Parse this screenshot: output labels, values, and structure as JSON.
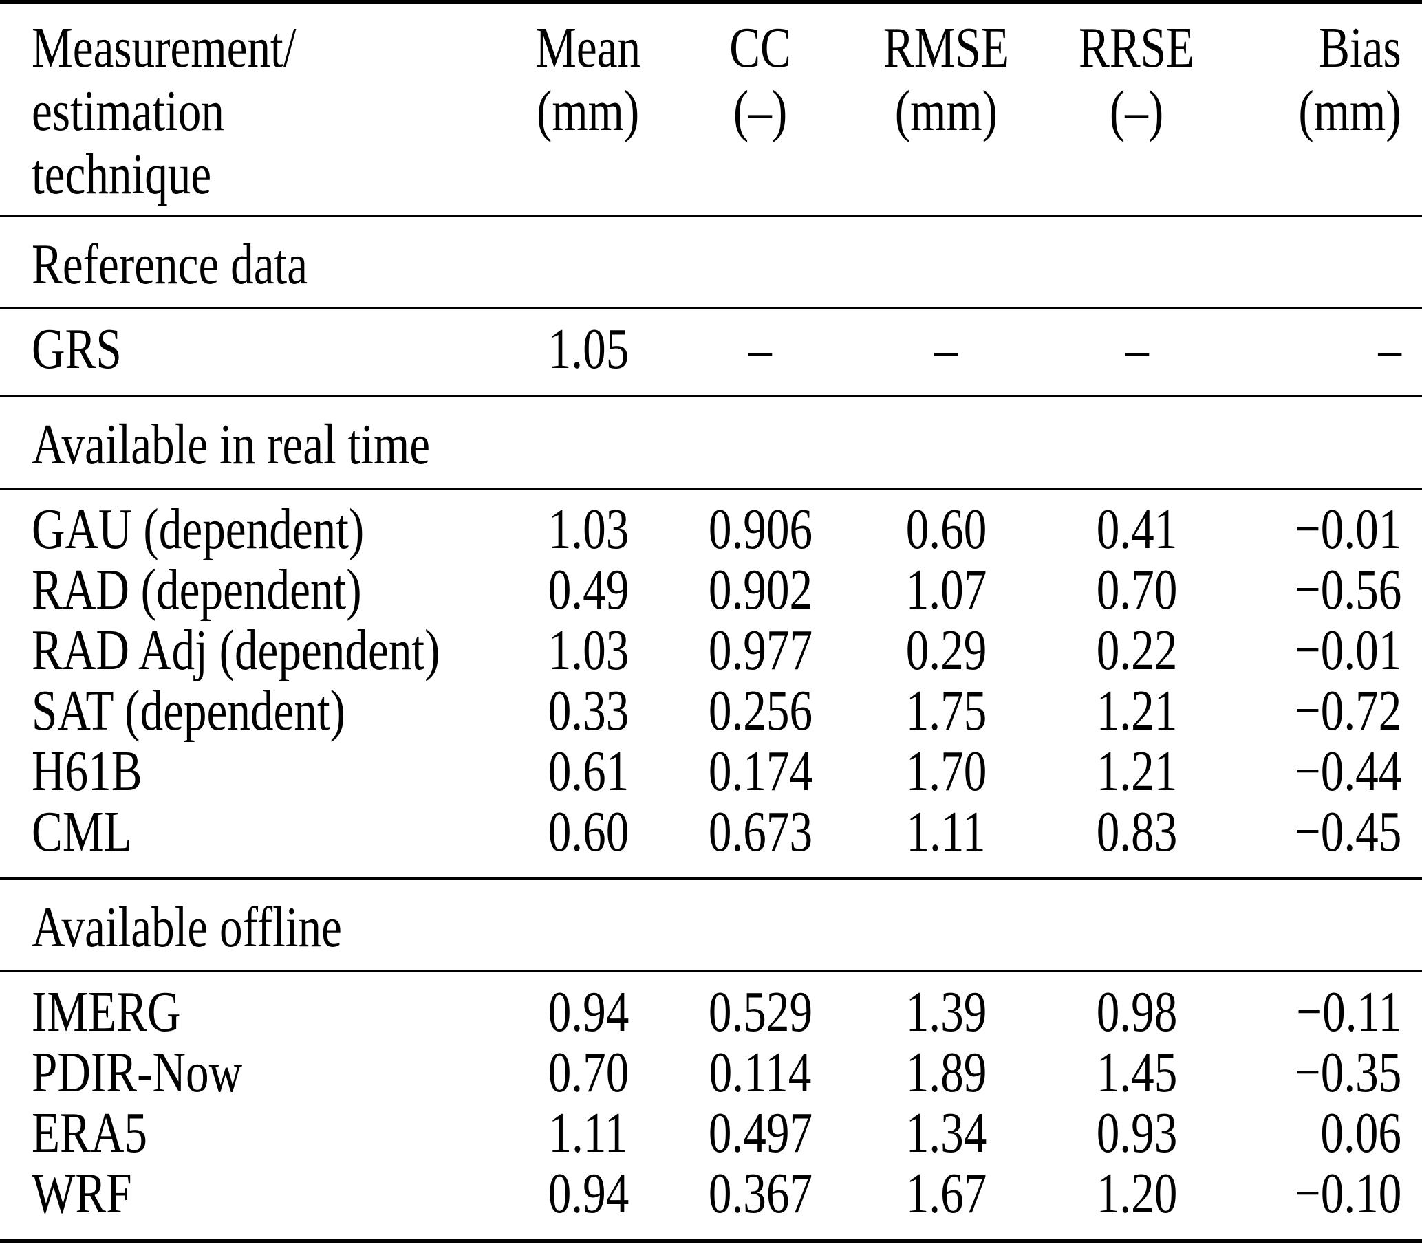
{
  "table": {
    "header": {
      "technique_lines": [
        "Measurement/",
        "estimation",
        "technique"
      ],
      "columns": [
        {
          "label": "Mean",
          "unit": "(mm)"
        },
        {
          "label": "CC",
          "unit": "(–)"
        },
        {
          "label": "RMSE",
          "unit": "(mm)"
        },
        {
          "label": "RRSE",
          "unit": "(–)"
        },
        {
          "label": "Bias",
          "unit": "(mm)"
        }
      ]
    },
    "sections": [
      {
        "title": "Reference data",
        "rows": [
          {
            "name": "GRS",
            "values": [
              "1.05",
              "–",
              "–",
              "–",
              "–"
            ]
          }
        ]
      },
      {
        "title": "Available in real time",
        "rows": [
          {
            "name": "GAU (dependent)",
            "values": [
              "1.03",
              "0.906",
              "0.60",
              "0.41",
              "−0.01"
            ]
          },
          {
            "name": "RAD (dependent)",
            "values": [
              "0.49",
              "0.902",
              "1.07",
              "0.70",
              "−0.56"
            ]
          },
          {
            "name": "RAD Adj (dependent)",
            "values": [
              "1.03",
              "0.977",
              "0.29",
              "0.22",
              "−0.01"
            ]
          },
          {
            "name": "SAT (dependent)",
            "values": [
              "0.33",
              "0.256",
              "1.75",
              "1.21",
              "−0.72"
            ]
          },
          {
            "name": "H61B",
            "values": [
              "0.61",
              "0.174",
              "1.70",
              "1.21",
              "−0.44"
            ]
          },
          {
            "name": "CML",
            "values": [
              "0.60",
              "0.673",
              "1.11",
              "0.83",
              "−0.45"
            ]
          }
        ]
      },
      {
        "title": "Available offline",
        "rows": [
          {
            "name": "IMERG",
            "values": [
              "0.94",
              "0.529",
              "1.39",
              "0.98",
              "−0.11"
            ]
          },
          {
            "name": "PDIR-Now",
            "values": [
              "0.70",
              "0.114",
              "1.89",
              "1.45",
              "−0.35"
            ]
          },
          {
            "name": "ERA5",
            "values": [
              "1.11",
              "0.497",
              "1.34",
              "0.93",
              "0.06"
            ]
          },
          {
            "name": "WRF",
            "values": [
              "0.94",
              "0.367",
              "1.67",
              "1.20",
              "−0.10"
            ]
          }
        ]
      }
    ]
  },
  "colors": {
    "text": "#000000",
    "background": "#ffffff",
    "rule": "#000000"
  },
  "chart_data": {
    "type": "table",
    "columns": [
      "Measurement/estimation technique",
      "Mean (mm)",
      "CC (–)",
      "RMSE (mm)",
      "RRSE (–)",
      "Bias (mm)"
    ],
    "groups": [
      {
        "group": "Reference data",
        "rows": [
          [
            "GRS",
            "1.05",
            "–",
            "–",
            "–",
            "–"
          ]
        ]
      },
      {
        "group": "Available in real time",
        "rows": [
          [
            "GAU (dependent)",
            "1.03",
            "0.906",
            "0.60",
            "0.41",
            "−0.01"
          ],
          [
            "RAD (dependent)",
            "0.49",
            "0.902",
            "1.07",
            "0.70",
            "−0.56"
          ],
          [
            "RAD Adj (dependent)",
            "1.03",
            "0.977",
            "0.29",
            "0.22",
            "−0.01"
          ],
          [
            "SAT (dependent)",
            "0.33",
            "0.256",
            "1.75",
            "1.21",
            "−0.72"
          ],
          [
            "H61B",
            "0.61",
            "0.174",
            "1.70",
            "1.21",
            "−0.44"
          ],
          [
            "CML",
            "0.60",
            "0.673",
            "1.11",
            "0.83",
            "−0.45"
          ]
        ]
      },
      {
        "group": "Available offline",
        "rows": [
          [
            "IMERG",
            "0.94",
            "0.529",
            "1.39",
            "0.98",
            "−0.11"
          ],
          [
            "PDIR-Now",
            "0.70",
            "0.114",
            "1.89",
            "1.45",
            "−0.35"
          ],
          [
            "ERA5",
            "1.11",
            "0.497",
            "1.34",
            "0.93",
            "0.06"
          ],
          [
            "WRF",
            "0.94",
            "0.367",
            "1.67",
            "1.20",
            "−0.10"
          ]
        ]
      }
    ]
  }
}
